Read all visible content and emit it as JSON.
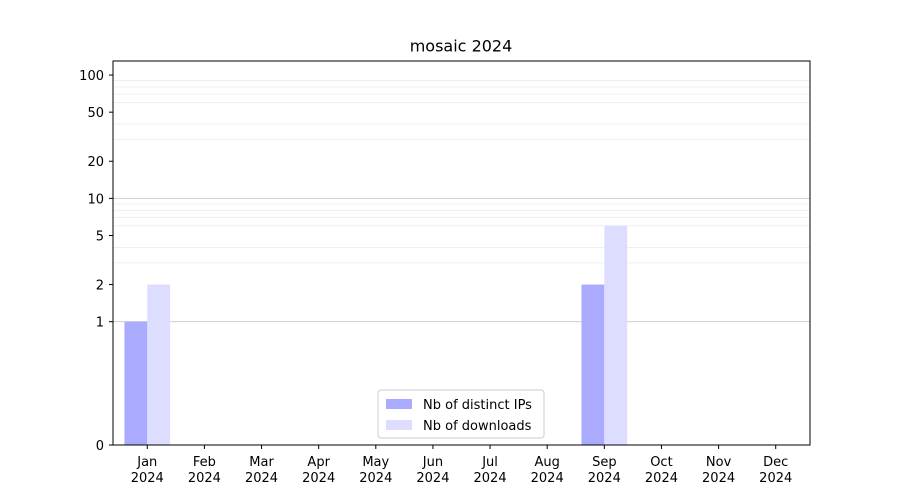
{
  "chart_data": {
    "type": "bar",
    "title": "mosaic 2024",
    "xlabel": "",
    "ylabel": "",
    "yscale": "symlog",
    "y_ticks": [
      0,
      1,
      2,
      5,
      10,
      20,
      50,
      100
    ],
    "ylim": [
      0,
      130
    ],
    "grid": "horizontal",
    "legend_position": "lower-center",
    "categories": [
      {
        "month": "Jan",
        "year": "2024"
      },
      {
        "month": "Feb",
        "year": "2024"
      },
      {
        "month": "Mar",
        "year": "2024"
      },
      {
        "month": "Apr",
        "year": "2024"
      },
      {
        "month": "May",
        "year": "2024"
      },
      {
        "month": "Jun",
        "year": "2024"
      },
      {
        "month": "Jul",
        "year": "2024"
      },
      {
        "month": "Aug",
        "year": "2024"
      },
      {
        "month": "Sep",
        "year": "2024"
      },
      {
        "month": "Oct",
        "year": "2024"
      },
      {
        "month": "Nov",
        "year": "2024"
      },
      {
        "month": "Dec",
        "year": "2024"
      }
    ],
    "series": [
      {
        "name": "Nb of distinct IPs",
        "color": "#aaaaff",
        "values": [
          1,
          0,
          0,
          0,
          0,
          0,
          0,
          0,
          2,
          0,
          0,
          0
        ]
      },
      {
        "name": "Nb of downloads",
        "color": "#ddddff",
        "values": [
          2,
          0,
          0,
          0,
          0,
          0,
          0,
          0,
          6,
          0,
          0,
          0
        ]
      }
    ]
  }
}
